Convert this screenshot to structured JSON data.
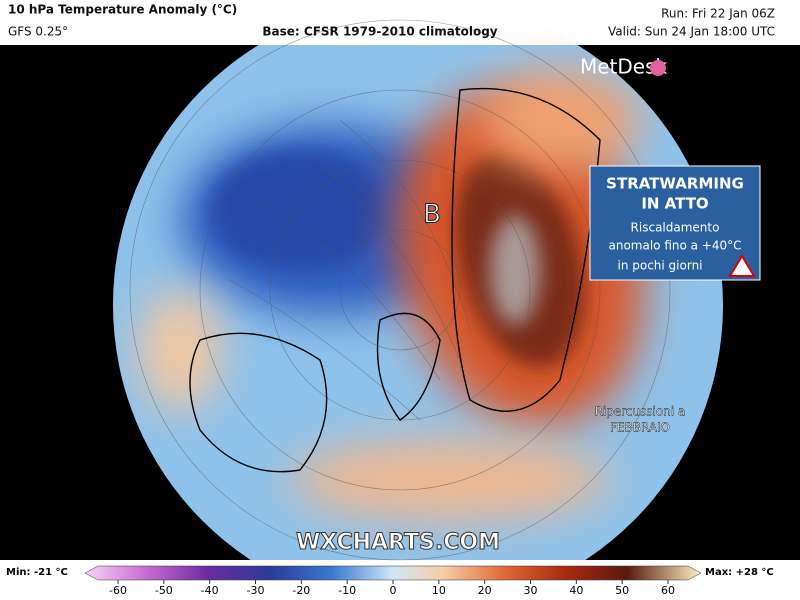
{
  "header": {
    "title": "10 hPa Temperature Anomaly (°C)",
    "model": "GFS 0.25°",
    "base": "Base: CFSR 1979-2010 climatology",
    "run": "Run: Fri 22 Jan 06Z",
    "valid": "Valid: Sun 24 Jan 18:00 UTC"
  },
  "logo": "MetDesk",
  "annotation": {
    "title": [
      "STRATWARMING",
      "IN ATTO"
    ],
    "text": [
      "Riscaldamento",
      "anomalo fino a +40°C",
      "in pochi giorni"
    ]
  },
  "low_marker": "B",
  "note": [
    "Ripercussioni a",
    "FEBBRAIO"
  ],
  "watermark": "WXCHARTS.COM",
  "colorbar": {
    "min_label": "Min: -21 °C",
    "max_label": "Max: +28 °C",
    "ticks": [
      -60,
      -50,
      -40,
      -30,
      -20,
      -10,
      0,
      10,
      20,
      30,
      40,
      50,
      60
    ]
  }
}
